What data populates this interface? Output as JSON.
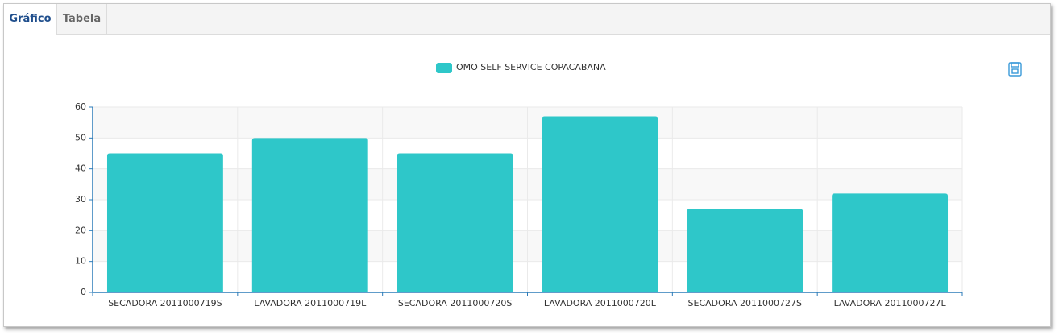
{
  "tabs": [
    "Gráfico",
    "Tabela"
  ],
  "chart_data": {
    "type": "bar",
    "categories": [
      "SECADORA 2011000719S",
      "LAVADORA 2011000719L",
      "SECADORA 2011000720S",
      "LAVADORA 2011000720L",
      "SECADORA 2011000727S",
      "LAVADORA 2011000727L"
    ],
    "series": [
      {
        "name": "OMO SELF SERVICE COPACABANA",
        "color": "#2ec7c9",
        "values": [
          45,
          50,
          45,
          57,
          27,
          32
        ]
      }
    ],
    "ylim": [
      0,
      60
    ],
    "yticks": [
      0,
      10,
      20,
      30,
      40,
      50,
      60
    ],
    "grid": true
  }
}
